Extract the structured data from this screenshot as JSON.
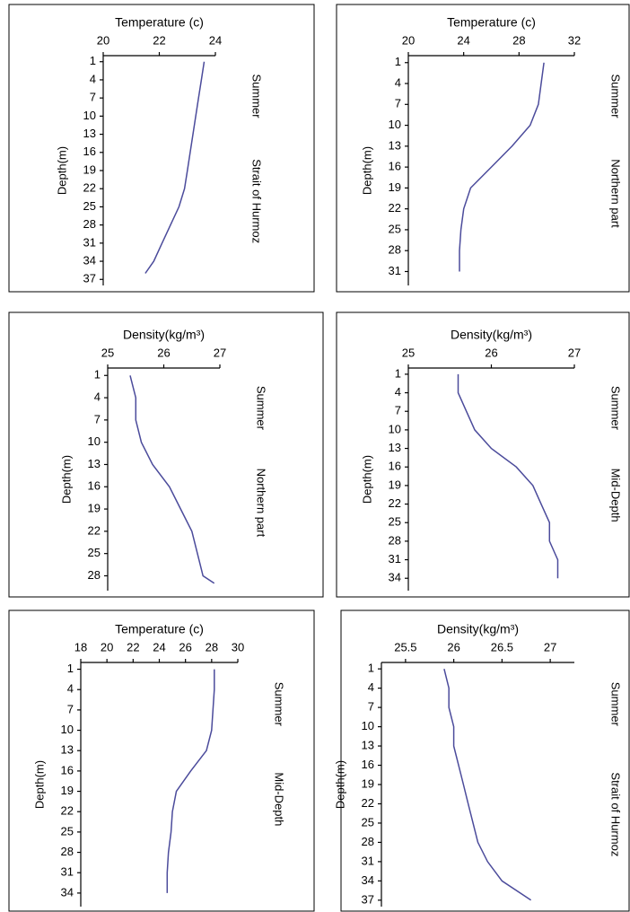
{
  "chart_data": [
    {
      "type": "line",
      "title": "Temperature (c)",
      "xlim": [
        20,
        24
      ],
      "xticks": [
        20,
        22,
        24
      ],
      "ylim": [
        0,
        38
      ],
      "y_inverted": true,
      "yticks": [
        1,
        4,
        7,
        10,
        13,
        16,
        19,
        22,
        25,
        28,
        31,
        34,
        37
      ],
      "y_label": "Depth(m)",
      "annotations": [
        "Summer",
        "Strait of Hurmoz"
      ],
      "series": [
        {
          "color": "#4b4b9b",
          "depth": [
            1,
            4,
            7,
            10,
            13,
            16,
            19,
            22,
            25,
            28,
            31,
            34,
            36
          ],
          "values": [
            23.6,
            23.5,
            23.4,
            23.3,
            23.2,
            23.1,
            23.0,
            22.9,
            22.7,
            22.4,
            22.1,
            21.8,
            21.5
          ]
        }
      ]
    },
    {
      "type": "line",
      "title": "Temperature (c)",
      "xlim": [
        20,
        32
      ],
      "xticks": [
        20,
        24,
        28,
        32
      ],
      "ylim": [
        0,
        33
      ],
      "y_inverted": true,
      "yticks": [
        1,
        4,
        7,
        10,
        13,
        16,
        19,
        22,
        25,
        28,
        31
      ],
      "y_label": "Depth(m)",
      "annotations": [
        "Summer",
        "Northern part"
      ],
      "series": [
        {
          "color": "#4b4b9b",
          "depth": [
            1,
            4,
            7,
            10,
            13,
            16,
            19,
            22,
            25,
            28,
            31
          ],
          "values": [
            29.8,
            29.6,
            29.4,
            28.8,
            27.5,
            26.0,
            24.5,
            24.0,
            23.8,
            23.7,
            23.7
          ]
        }
      ]
    },
    {
      "type": "line",
      "title": "Density(kg/m³)",
      "xlim": [
        25,
        27
      ],
      "xticks": [
        25,
        26,
        27
      ],
      "ylim": [
        0,
        30
      ],
      "y_inverted": true,
      "yticks": [
        1,
        4,
        7,
        10,
        13,
        16,
        19,
        22,
        25,
        28
      ],
      "y_label": "Depth(m)",
      "annotations": [
        "Summer",
        "Northern part"
      ],
      "series": [
        {
          "color": "#4b4b9b",
          "depth": [
            1,
            4,
            7,
            10,
            13,
            16,
            19,
            22,
            25,
            28,
            29
          ],
          "values": [
            25.4,
            25.5,
            25.5,
            25.6,
            25.8,
            26.1,
            26.3,
            26.5,
            26.6,
            26.7,
            26.9
          ]
        }
      ]
    },
    {
      "type": "line",
      "title": "Density(kg/m³)",
      "xlim": [
        25,
        27
      ],
      "xticks": [
        25,
        26,
        27
      ],
      "ylim": [
        0,
        36
      ],
      "y_inverted": true,
      "yticks": [
        1,
        4,
        7,
        10,
        13,
        16,
        19,
        22,
        25,
        28,
        31,
        34
      ],
      "y_label": "Depth(m)",
      "annotations": [
        "Summer",
        "Mid-Depth"
      ],
      "series": [
        {
          "color": "#4b4b9b",
          "depth": [
            1,
            4,
            7,
            10,
            13,
            16,
            19,
            22,
            25,
            28,
            31,
            34
          ],
          "values": [
            25.6,
            25.6,
            25.7,
            25.8,
            26.0,
            26.3,
            26.5,
            26.6,
            26.7,
            26.7,
            26.8,
            26.8
          ]
        }
      ]
    },
    {
      "type": "line",
      "title": "Temperature (c)",
      "xlim": [
        18,
        30
      ],
      "xticks": [
        18,
        20,
        22,
        24,
        26,
        28,
        30
      ],
      "ylim": [
        0,
        36
      ],
      "y_inverted": true,
      "yticks": [
        1,
        4,
        7,
        10,
        13,
        16,
        19,
        22,
        25,
        28,
        31,
        34
      ],
      "y_label": "Depth(m)",
      "annotations": [
        "Summer",
        "Mid-Depth"
      ],
      "series": [
        {
          "color": "#4b4b9b",
          "depth": [
            1,
            4,
            7,
            10,
            13,
            16,
            19,
            22,
            25,
            28,
            31,
            34
          ],
          "values": [
            28.2,
            28.2,
            28.1,
            28.0,
            27.6,
            26.4,
            25.3,
            25.0,
            24.9,
            24.7,
            24.6,
            24.6
          ]
        }
      ]
    },
    {
      "type": "line",
      "title": "Density(kg/m³)",
      "xlim": [
        25.25,
        27.25
      ],
      "xticks": [
        25.5,
        26,
        26.5,
        27
      ],
      "ylim": [
        0,
        38
      ],
      "y_inverted": true,
      "yticks": [
        1,
        4,
        7,
        10,
        13,
        16,
        19,
        22,
        25,
        28,
        31,
        34,
        37
      ],
      "y_label": "Depth(m)",
      "annotations": [
        "Summer",
        "Strait of Hurmoz"
      ],
      "series": [
        {
          "color": "#4b4b9b",
          "depth": [
            1,
            4,
            7,
            10,
            13,
            16,
            19,
            22,
            25,
            28,
            31,
            34,
            37
          ],
          "values": [
            25.9,
            25.95,
            25.95,
            26.0,
            26.0,
            26.05,
            26.1,
            26.15,
            26.2,
            26.25,
            26.35,
            26.5,
            26.8
          ]
        }
      ]
    }
  ]
}
